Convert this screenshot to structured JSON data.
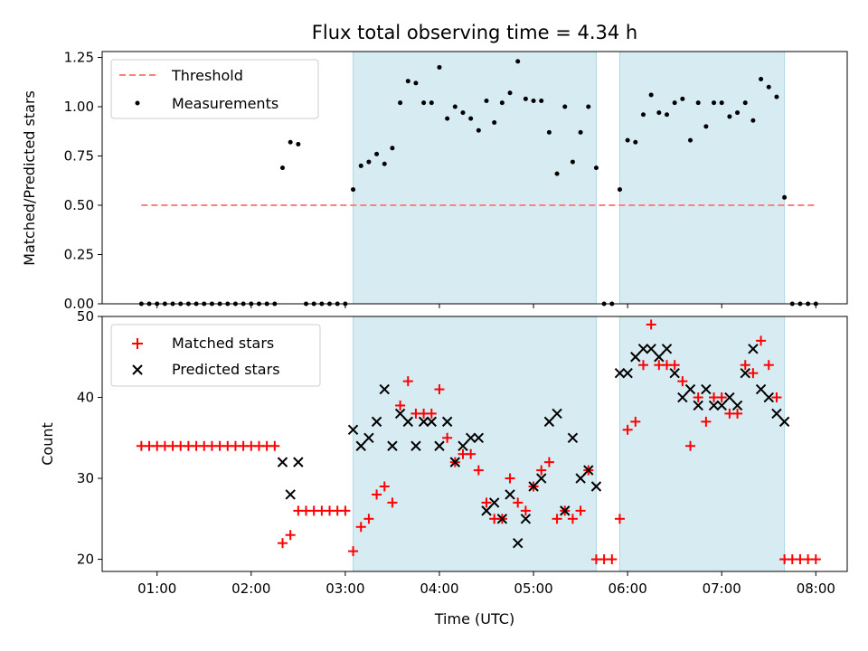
{
  "chart_data": [
    {
      "type": "scatter",
      "title": "Flux total observing time = 4.34 h",
      "xlabel": "",
      "ylabel": "Matched/Predicted stars",
      "ylim": [
        0,
        1.28
      ],
      "yticks": [
        "0.00",
        "0.25",
        "0.50",
        "0.75",
        "1.00",
        "1.25"
      ],
      "grid": false,
      "legend_position": "top-left",
      "shaded_intervals": [
        {
          "start": "03:05",
          "end": "05:40"
        },
        {
          "start": "05:55",
          "end": "07:40"
        }
      ],
      "threshold": {
        "name": "Threshold",
        "value": 0.5,
        "x_start": "00:50",
        "x_end": "08:00"
      },
      "series": [
        {
          "name": "Measurements",
          "points": [
            [
              "00:50",
              0
            ],
            [
              "00:55",
              0
            ],
            [
              "01:00",
              0
            ],
            [
              "01:05",
              0
            ],
            [
              "01:10",
              0
            ],
            [
              "01:15",
              0
            ],
            [
              "01:20",
              0
            ],
            [
              "01:25",
              0
            ],
            [
              "01:30",
              0
            ],
            [
              "01:35",
              0
            ],
            [
              "01:40",
              0
            ],
            [
              "01:45",
              0
            ],
            [
              "01:50",
              0
            ],
            [
              "01:55",
              0
            ],
            [
              "02:00",
              0
            ],
            [
              "02:05",
              0
            ],
            [
              "02:10",
              0
            ],
            [
              "02:15",
              0
            ],
            [
              "02:20",
              0.69
            ],
            [
              "02:25",
              0.82
            ],
            [
              "02:30",
              0.81
            ],
            [
              "02:35",
              0
            ],
            [
              "02:40",
              0
            ],
            [
              "02:45",
              0
            ],
            [
              "02:50",
              0
            ],
            [
              "02:55",
              0
            ],
            [
              "03:00",
              0
            ],
            [
              "03:05",
              0.58
            ],
            [
              "03:10",
              0.7
            ],
            [
              "03:15",
              0.72
            ],
            [
              "03:20",
              0.76
            ],
            [
              "03:25",
              0.71
            ],
            [
              "03:30",
              0.79
            ],
            [
              "03:35",
              1.02
            ],
            [
              "03:40",
              1.13
            ],
            [
              "03:45",
              1.12
            ],
            [
              "03:50",
              1.02
            ],
            [
              "03:55",
              1.02
            ],
            [
              "04:00",
              1.2
            ],
            [
              "04:05",
              0.94
            ],
            [
              "04:10",
              1.0
            ],
            [
              "04:15",
              0.97
            ],
            [
              "04:20",
              0.94
            ],
            [
              "04:25",
              0.88
            ],
            [
              "04:30",
              1.03
            ],
            [
              "04:35",
              0.92
            ],
            [
              "04:40",
              1.02
            ],
            [
              "04:45",
              1.07
            ],
            [
              "04:50",
              1.23
            ],
            [
              "04:55",
              1.04
            ],
            [
              "05:00",
              1.03
            ],
            [
              "05:05",
              1.03
            ],
            [
              "05:10",
              0.87
            ],
            [
              "05:15",
              0.66
            ],
            [
              "05:20",
              1.0
            ],
            [
              "05:25",
              0.72
            ],
            [
              "05:30",
              0.87
            ],
            [
              "05:35",
              1.0
            ],
            [
              "05:40",
              0.69
            ],
            [
              "05:45",
              0
            ],
            [
              "05:50",
              0
            ],
            [
              "05:55",
              0.58
            ],
            [
              "06:00",
              0.83
            ],
            [
              "06:05",
              0.82
            ],
            [
              "06:10",
              0.96
            ],
            [
              "06:15",
              1.06
            ],
            [
              "06:20",
              0.97
            ],
            [
              "06:25",
              0.96
            ],
            [
              "06:30",
              1.02
            ],
            [
              "06:35",
              1.04
            ],
            [
              "06:40",
              0.83
            ],
            [
              "06:45",
              1.02
            ],
            [
              "06:50",
              0.9
            ],
            [
              "06:55",
              1.02
            ],
            [
              "07:00",
              1.02
            ],
            [
              "07:05",
              0.95
            ],
            [
              "07:10",
              0.97
            ],
            [
              "07:15",
              1.02
            ],
            [
              "07:20",
              0.93
            ],
            [
              "07:25",
              1.14
            ],
            [
              "07:30",
              1.1
            ],
            [
              "07:35",
              1.05
            ],
            [
              "07:40",
              0.54
            ],
            [
              "07:45",
              0
            ],
            [
              "07:50",
              0
            ],
            [
              "07:55",
              0
            ],
            [
              "08:00",
              0
            ]
          ]
        }
      ]
    },
    {
      "type": "scatter",
      "title": "",
      "xlabel": "Time (UTC)",
      "ylabel": "Count",
      "ylim": [
        18.5,
        50
      ],
      "yticks": [
        "20",
        "30",
        "40",
        "50"
      ],
      "xlim": [
        "00:25",
        "08:20"
      ],
      "xticks": [
        "01:00",
        "02:00",
        "03:00",
        "04:00",
        "05:00",
        "06:00",
        "07:00",
        "08:00"
      ],
      "grid": false,
      "legend_position": "top-left",
      "shaded_intervals": [
        {
          "start": "03:05",
          "end": "05:40"
        },
        {
          "start": "05:55",
          "end": "07:40"
        }
      ],
      "series": [
        {
          "name": "Matched stars",
          "points": [
            [
              "00:50",
              34
            ],
            [
              "00:55",
              34
            ],
            [
              "01:00",
              34
            ],
            [
              "01:05",
              34
            ],
            [
              "01:10",
              34
            ],
            [
              "01:15",
              34
            ],
            [
              "01:20",
              34
            ],
            [
              "01:25",
              34
            ],
            [
              "01:30",
              34
            ],
            [
              "01:35",
              34
            ],
            [
              "01:40",
              34
            ],
            [
              "01:45",
              34
            ],
            [
              "01:50",
              34
            ],
            [
              "01:55",
              34
            ],
            [
              "02:00",
              34
            ],
            [
              "02:05",
              34
            ],
            [
              "02:10",
              34
            ],
            [
              "02:15",
              34
            ],
            [
              "02:20",
              22
            ],
            [
              "02:25",
              23
            ],
            [
              "02:30",
              26
            ],
            [
              "02:35",
              26
            ],
            [
              "02:40",
              26
            ],
            [
              "02:45",
              26
            ],
            [
              "02:50",
              26
            ],
            [
              "02:55",
              26
            ],
            [
              "03:00",
              26
            ],
            [
              "03:05",
              21
            ],
            [
              "03:10",
              24
            ],
            [
              "03:15",
              25
            ],
            [
              "03:20",
              28
            ],
            [
              "03:25",
              29
            ],
            [
              "03:30",
              27
            ],
            [
              "03:35",
              39
            ],
            [
              "03:40",
              42
            ],
            [
              "03:45",
              38
            ],
            [
              "03:50",
              38
            ],
            [
              "03:55",
              38
            ],
            [
              "04:00",
              41
            ],
            [
              "04:05",
              35
            ],
            [
              "04:10",
              32
            ],
            [
              "04:15",
              33
            ],
            [
              "04:20",
              33
            ],
            [
              "04:25",
              31
            ],
            [
              "04:30",
              27
            ],
            [
              "04:35",
              25
            ],
            [
              "04:40",
              25
            ],
            [
              "04:45",
              30
            ],
            [
              "04:50",
              27
            ],
            [
              "04:55",
              26
            ],
            [
              "05:00",
              29
            ],
            [
              "05:05",
              31
            ],
            [
              "05:10",
              32
            ],
            [
              "05:15",
              25
            ],
            [
              "05:20",
              26
            ],
            [
              "05:25",
              25
            ],
            [
              "05:30",
              26
            ],
            [
              "05:35",
              31
            ],
            [
              "05:40",
              20
            ],
            [
              "05:45",
              20
            ],
            [
              "05:50",
              20
            ],
            [
              "05:55",
              25
            ],
            [
              "06:00",
              36
            ],
            [
              "06:05",
              37
            ],
            [
              "06:10",
              44
            ],
            [
              "06:15",
              49
            ],
            [
              "06:20",
              44
            ],
            [
              "06:25",
              44
            ],
            [
              "06:30",
              44
            ],
            [
              "06:35",
              42
            ],
            [
              "06:40",
              34
            ],
            [
              "06:45",
              40
            ],
            [
              "06:50",
              37
            ],
            [
              "06:55",
              40
            ],
            [
              "07:00",
              40
            ],
            [
              "07:05",
              38
            ],
            [
              "07:10",
              38
            ],
            [
              "07:15",
              44
            ],
            [
              "07:20",
              43
            ],
            [
              "07:25",
              47
            ],
            [
              "07:30",
              44
            ],
            [
              "07:35",
              40
            ],
            [
              "07:40",
              20
            ],
            [
              "07:45",
              20
            ],
            [
              "07:50",
              20
            ],
            [
              "07:55",
              20
            ],
            [
              "08:00",
              20
            ]
          ]
        },
        {
          "name": "Predicted stars",
          "points": [
            [
              "02:20",
              32
            ],
            [
              "02:25",
              28
            ],
            [
              "02:30",
              32
            ],
            [
              "03:05",
              36
            ],
            [
              "03:10",
              34
            ],
            [
              "03:15",
              35
            ],
            [
              "03:20",
              37
            ],
            [
              "03:25",
              41
            ],
            [
              "03:30",
              34
            ],
            [
              "03:35",
              38
            ],
            [
              "03:40",
              37
            ],
            [
              "03:45",
              34
            ],
            [
              "03:50",
              37
            ],
            [
              "03:55",
              37
            ],
            [
              "04:00",
              34
            ],
            [
              "04:05",
              37
            ],
            [
              "04:10",
              32
            ],
            [
              "04:15",
              34
            ],
            [
              "04:20",
              35
            ],
            [
              "04:25",
              35
            ],
            [
              "04:30",
              26
            ],
            [
              "04:35",
              27
            ],
            [
              "04:40",
              25
            ],
            [
              "04:45",
              28
            ],
            [
              "04:50",
              22
            ],
            [
              "04:55",
              25
            ],
            [
              "05:00",
              29
            ],
            [
              "05:05",
              30
            ],
            [
              "05:10",
              37
            ],
            [
              "05:15",
              38
            ],
            [
              "05:20",
              26
            ],
            [
              "05:25",
              35
            ],
            [
              "05:30",
              30
            ],
            [
              "05:35",
              31
            ],
            [
              "05:40",
              29
            ],
            [
              "05:55",
              43
            ],
            [
              "06:00",
              43
            ],
            [
              "06:05",
              45
            ],
            [
              "06:10",
              46
            ],
            [
              "06:15",
              46
            ],
            [
              "06:20",
              45
            ],
            [
              "06:25",
              46
            ],
            [
              "06:30",
              43
            ],
            [
              "06:35",
              40
            ],
            [
              "06:40",
              41
            ],
            [
              "06:45",
              39
            ],
            [
              "06:50",
              41
            ],
            [
              "06:55",
              39
            ],
            [
              "07:00",
              39
            ],
            [
              "07:05",
              40
            ],
            [
              "07:10",
              39
            ],
            [
              "07:15",
              43
            ],
            [
              "07:20",
              46
            ],
            [
              "07:25",
              41
            ],
            [
              "07:30",
              40
            ],
            [
              "07:35",
              38
            ],
            [
              "07:40",
              37
            ]
          ]
        }
      ]
    }
  ],
  "colors": {
    "shade": "#add8e6",
    "threshold": "#ff8080",
    "measurements": "#000000",
    "matched": "#ff0000",
    "predicted": "#000000"
  }
}
